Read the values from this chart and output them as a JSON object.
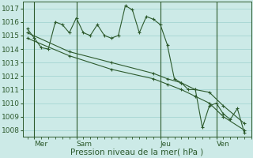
{
  "bg_color": "#cceae7",
  "grid_color": "#aad8d5",
  "line_color": "#2d5a2d",
  "ylim": [
    1007.5,
    1017.5
  ],
  "yticks": [
    1008,
    1009,
    1010,
    1011,
    1012,
    1013,
    1014,
    1015,
    1016,
    1017
  ],
  "xlabel": "Pression niveau de la mer( hPa )",
  "day_labels": [
    "Mer",
    "Sam",
    "Jeu",
    "Ven"
  ],
  "day_positions": [
    0.5,
    3.5,
    9.5,
    13.5
  ],
  "series1_x": [
    0,
    0.5,
    1,
    1.5,
    2,
    2.5,
    3,
    3.5,
    4,
    4.5,
    5,
    5.5,
    6,
    6.5,
    7,
    7.5,
    8,
    8.5,
    9,
    9.5,
    10,
    10.5,
    11,
    11.5,
    12,
    12.5,
    13,
    13.5,
    14,
    14.5,
    15,
    15.5
  ],
  "series1_y": [
    1015.5,
    1014.8,
    1014.1,
    1014.0,
    1016.0,
    1015.8,
    1015.2,
    1016.3,
    1015.2,
    1015.0,
    1015.8,
    1015.0,
    1014.8,
    1015.0,
    1017.2,
    1016.9,
    1015.2,
    1016.4,
    1016.2,
    1015.8,
    1014.3,
    1011.8,
    1011.5,
    1011.0,
    1011.0,
    1008.2,
    1009.8,
    1010.0,
    1009.2,
    1008.8,
    1009.6,
    1007.8
  ],
  "series2_x": [
    0,
    3,
    6,
    9,
    10,
    11,
    12,
    13,
    14,
    15.5
  ],
  "series2_y": [
    1015.2,
    1013.8,
    1013.0,
    1012.2,
    1011.8,
    1011.5,
    1011.0,
    1010.8,
    1009.8,
    1008.5
  ],
  "series3_x": [
    0,
    3,
    6,
    9,
    10,
    11,
    12,
    13,
    14,
    15.5
  ],
  "series3_y": [
    1014.8,
    1013.5,
    1012.5,
    1011.8,
    1011.4,
    1011.0,
    1010.5,
    1010.0,
    1009.0,
    1008.0
  ],
  "tick_fontsize": 6.5,
  "label_fontsize": 7.5
}
